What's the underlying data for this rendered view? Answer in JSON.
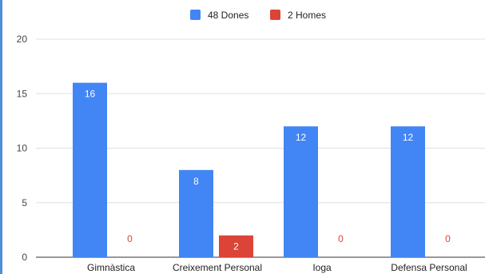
{
  "chart_data": {
    "type": "bar",
    "categories": [
      "Gimnàstica",
      "Creixement Personal",
      "Ioga",
      "Defensa Personal"
    ],
    "series": [
      {
        "name": "48 Dones",
        "color": "#4285f4",
        "values": [
          16,
          8,
          12,
          12
        ]
      },
      {
        "name": "2 Homes",
        "color": "#db4437",
        "values": [
          0,
          2,
          0,
          0
        ]
      }
    ],
    "yticks": [
      0,
      5,
      10,
      15,
      20
    ],
    "ylim": [
      0,
      20
    ],
    "grid": true,
    "legend_position": "top-center",
    "data_labels": true
  }
}
